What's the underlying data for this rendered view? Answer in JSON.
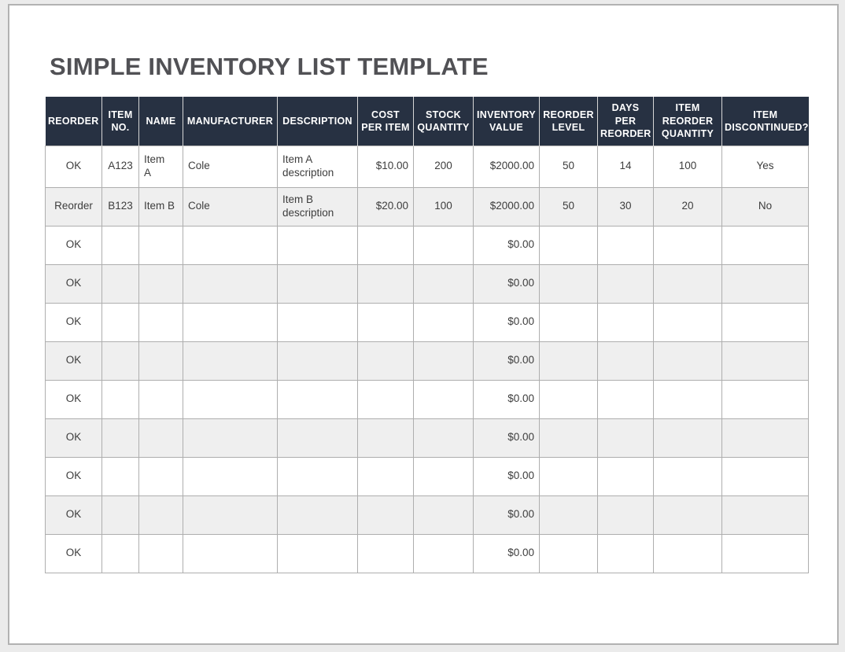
{
  "page": {
    "title": "SIMPLE INVENTORY LIST TEMPLATE"
  },
  "colors": {
    "header_bg": "#273142",
    "header_text": "#ffffff",
    "stripe_row": "#efefef",
    "cell_border": "#aeaeae",
    "title_text": "#515155",
    "page_margin_bg": "#ebebeb"
  },
  "table": {
    "columns": [
      {
        "id": "reorder",
        "label": "REORDER",
        "align": "center"
      },
      {
        "id": "item-no",
        "label": "ITEM\nNO.",
        "align": "center"
      },
      {
        "id": "name",
        "label": "NAME",
        "align": "left"
      },
      {
        "id": "manufacturer",
        "label": "MANUFACTURER",
        "align": "left"
      },
      {
        "id": "description",
        "label": "DESCRIPTION",
        "align": "left"
      },
      {
        "id": "cost-per-item",
        "label": "COST\nPER ITEM",
        "align": "right"
      },
      {
        "id": "stock-quantity",
        "label": "STOCK\nQUANTITY",
        "align": "center"
      },
      {
        "id": "inventory-value",
        "label": "INVENTORY\nVALUE",
        "align": "right"
      },
      {
        "id": "reorder-level",
        "label": "REORDER\nLEVEL",
        "align": "center"
      },
      {
        "id": "days-per-reorder",
        "label": "DAYS\nPER\nREORDER",
        "align": "center"
      },
      {
        "id": "item-reorder-qty",
        "label": "ITEM\nREORDER\nQUANTITY",
        "align": "center"
      },
      {
        "id": "item-discontinued",
        "label": "ITEM\nDISCONTINUED?",
        "align": "center"
      }
    ],
    "rows": [
      [
        "OK",
        "A123",
        "Item\nA",
        "Cole",
        "Item A\ndescription",
        "$10.00",
        "200",
        "$2000.00",
        "50",
        "14",
        "100",
        "Yes"
      ],
      [
        "Reorder",
        "B123",
        "Item B",
        "Cole",
        "Item B\ndescription",
        "$20.00",
        "100",
        "$2000.00",
        "50",
        "30",
        "20",
        "No"
      ],
      [
        "OK",
        "",
        "",
        "",
        "",
        "",
        "",
        "$0.00",
        "",
        "",
        "",
        ""
      ],
      [
        "OK",
        "",
        "",
        "",
        "",
        "",
        "",
        "$0.00",
        "",
        "",
        "",
        ""
      ],
      [
        "OK",
        "",
        "",
        "",
        "",
        "",
        "",
        "$0.00",
        "",
        "",
        "",
        ""
      ],
      [
        "OK",
        "",
        "",
        "",
        "",
        "",
        "",
        "$0.00",
        "",
        "",
        "",
        ""
      ],
      [
        "OK",
        "",
        "",
        "",
        "",
        "",
        "",
        "$0.00",
        "",
        "",
        "",
        ""
      ],
      [
        "OK",
        "",
        "",
        "",
        "",
        "",
        "",
        "$0.00",
        "",
        "",
        "",
        ""
      ],
      [
        "OK",
        "",
        "",
        "",
        "",
        "",
        "",
        "$0.00",
        "",
        "",
        "",
        ""
      ],
      [
        "OK",
        "",
        "",
        "",
        "",
        "",
        "",
        "$0.00",
        "",
        "",
        "",
        ""
      ],
      [
        "OK",
        "",
        "",
        "",
        "",
        "",
        "",
        "$0.00",
        "",
        "",
        "",
        ""
      ]
    ]
  }
}
